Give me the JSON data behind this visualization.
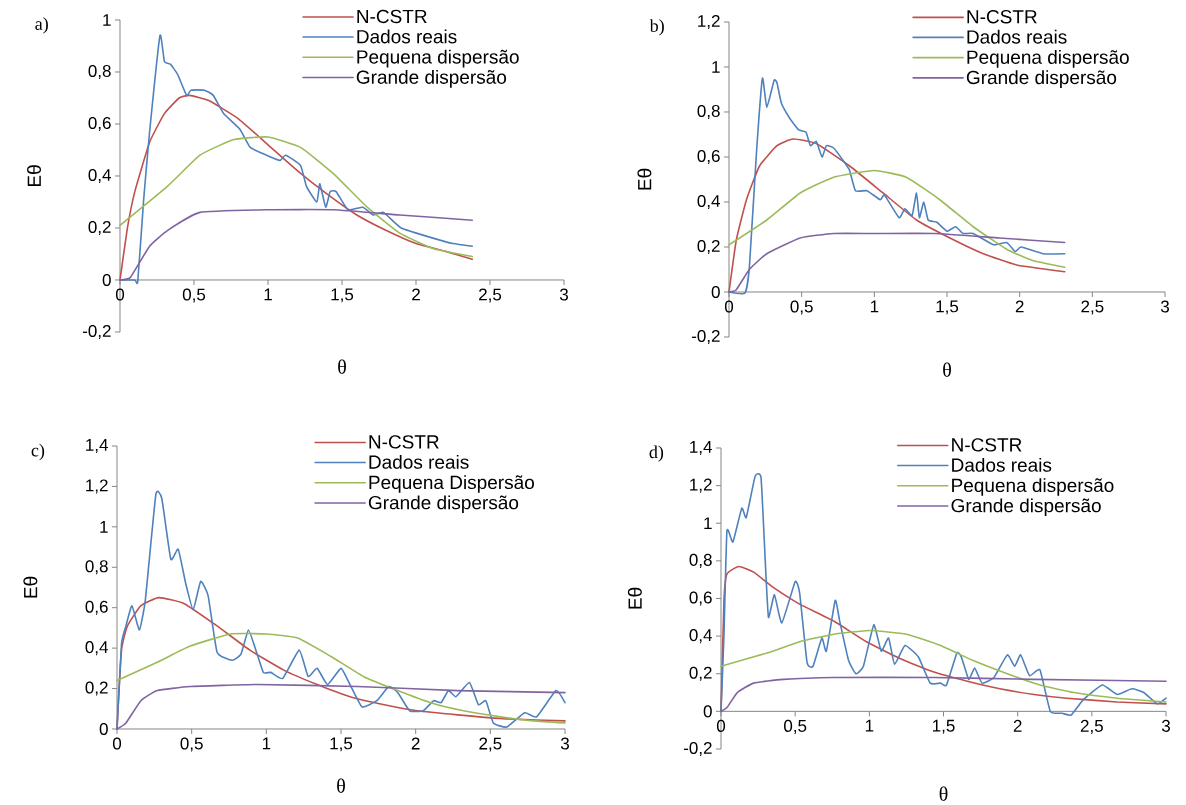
{
  "chart_data": [
    {
      "type": "line",
      "xlabel": "θ",
      "ylabel": "Eθ",
      "annotations": [
        "a)"
      ],
      "legend": "top right",
      "xlim": [
        0,
        3
      ],
      "ylim": [
        -0.2,
        1
      ],
      "xticks": [
        0,
        {
          "value": 0.5,
          "label": "0,5"
        },
        1,
        {
          "value": 1.5,
          "label": "1,5"
        },
        2,
        {
          "value": 2.5,
          "label": "2,5"
        },
        3
      ],
      "yticks": [
        {
          "value": -0.2,
          "label": "-0,2"
        },
        0,
        {
          "value": 0.2,
          "label": "0,2"
        },
        {
          "value": 0.4,
          "label": "0,4"
        },
        {
          "value": 0.6,
          "label": "0,6"
        },
        {
          "value": 0.8,
          "label": "0,8"
        },
        1
      ],
      "series": [
        {
          "name": "N-CSTR",
          "color": "#c0504d",
          "x": [
            0,
            0.05,
            0.1,
            0.2,
            0.3,
            0.4,
            0.47,
            0.6,
            0.8,
            1.0,
            1.2,
            1.4,
            1.6,
            1.8,
            2.0,
            2.2,
            2.38
          ],
          "values": [
            0,
            0.2,
            0.34,
            0.53,
            0.64,
            0.7,
            0.71,
            0.69,
            0.62,
            0.52,
            0.42,
            0.33,
            0.25,
            0.19,
            0.14,
            0.11,
            0.08
          ]
        },
        {
          "name": "Dados reais",
          "color": "#4f81bd",
          "x": [
            0,
            0.1,
            0.12,
            0.16,
            0.2,
            0.27,
            0.3,
            0.34,
            0.39,
            0.45,
            0.48,
            0.57,
            0.63,
            0.7,
            0.81,
            0.88,
            0.99,
            1.08,
            1.12,
            1.22,
            1.26,
            1.33,
            1.35,
            1.39,
            1.42,
            1.46,
            1.54,
            1.64,
            1.71,
            1.78,
            1.9,
            2.12,
            2.25,
            2.38
          ],
          "values": [
            0,
            0,
            -0.005,
            0.31,
            0.57,
            0.94,
            0.84,
            0.83,
            0.79,
            0.71,
            0.73,
            0.73,
            0.71,
            0.64,
            0.58,
            0.51,
            0.48,
            0.46,
            0.48,
            0.44,
            0.36,
            0.3,
            0.37,
            0.28,
            0.34,
            0.34,
            0.27,
            0.28,
            0.25,
            0.26,
            0.2,
            0.16,
            0.14,
            0.13
          ]
        },
        {
          "name": "Pequena dispersão",
          "color": "#9bbb59",
          "x": [
            0,
            0.32,
            0.54,
            0.77,
            1.0,
            1.22,
            1.44,
            1.67,
            1.89,
            2.12,
            2.38
          ],
          "values": [
            0.21,
            0.36,
            0.48,
            0.54,
            0.55,
            0.51,
            0.41,
            0.28,
            0.18,
            0.12,
            0.09
          ]
        },
        {
          "name": "Grande dispersão",
          "color": "#8064a2",
          "x": [
            0,
            0.07,
            0.2,
            0.32,
            0.54,
            0.99,
            1.44,
            1.89,
            2.38
          ],
          "values": [
            0,
            0.01,
            0.13,
            0.19,
            0.26,
            0.27,
            0.27,
            0.25,
            0.23
          ]
        }
      ]
    },
    {
      "type": "line",
      "xlabel": "θ",
      "ylabel": "Eθ",
      "annotations": [
        "b)"
      ],
      "legend": "top right",
      "xlim": [
        0,
        3
      ],
      "ylim": [
        -0.2,
        1.2
      ],
      "xticks": [
        0,
        {
          "value": 0.5,
          "label": "0,5"
        },
        1,
        {
          "value": 1.5,
          "label": "1,5"
        },
        2,
        {
          "value": 2.5,
          "label": "2,5"
        },
        3
      ],
      "yticks": [
        {
          "value": -0.2,
          "label": "-0,2"
        },
        0,
        {
          "value": 0.2,
          "label": "0,2"
        },
        {
          "value": 0.4,
          "label": "0,4"
        },
        {
          "value": 0.6,
          "label": "0,6"
        },
        {
          "value": 0.8,
          "label": "0,8"
        },
        1,
        {
          "value": 1.2,
          "label": "1,2"
        }
      ],
      "series": [
        {
          "name": "N-CSTR",
          "color": "#c0504d",
          "x": [
            0,
            0.05,
            0.12,
            0.21,
            0.33,
            0.44,
            0.6,
            0.83,
            1.06,
            1.29,
            1.52,
            1.75,
            1.98,
            2.31
          ],
          "values": [
            0,
            0.23,
            0.41,
            0.56,
            0.65,
            0.68,
            0.66,
            0.56,
            0.44,
            0.32,
            0.24,
            0.17,
            0.12,
            0.09
          ]
        },
        {
          "name": "Dados reais",
          "color": "#4f81bd",
          "x": [
            0,
            0.11,
            0.14,
            0.19,
            0.23,
            0.26,
            0.31,
            0.33,
            0.36,
            0.42,
            0.48,
            0.53,
            0.56,
            0.6,
            0.64,
            0.67,
            0.72,
            0.79,
            0.83,
            0.87,
            0.95,
            1.04,
            1.07,
            1.17,
            1.21,
            1.26,
            1.29,
            1.31,
            1.34,
            1.37,
            1.43,
            1.5,
            1.56,
            1.61,
            1.68,
            1.82,
            1.91,
            1.97,
            2.01,
            2.16,
            2.31
          ],
          "values": [
            0,
            -0.005,
            0.11,
            0.63,
            0.95,
            0.82,
            0.94,
            0.93,
            0.84,
            0.77,
            0.72,
            0.71,
            0.65,
            0.67,
            0.6,
            0.65,
            0.64,
            0.58,
            0.54,
            0.45,
            0.45,
            0.41,
            0.43,
            0.33,
            0.37,
            0.34,
            0.44,
            0.33,
            0.4,
            0.32,
            0.31,
            0.27,
            0.29,
            0.26,
            0.26,
            0.21,
            0.22,
            0.18,
            0.2,
            0.17,
            0.17
          ]
        },
        {
          "name": "Pequena dispersão",
          "color": "#9bbb59",
          "x": [
            0,
            0.26,
            0.49,
            0.72,
            1.0,
            1.22,
            1.45,
            1.68,
            1.91,
            2.09,
            2.31
          ],
          "values": [
            0.21,
            0.32,
            0.44,
            0.51,
            0.54,
            0.51,
            0.41,
            0.29,
            0.19,
            0.14,
            0.11
          ]
        },
        {
          "name": "Grande dispersão",
          "color": "#8064a2",
          "x": [
            0,
            0.05,
            0.14,
            0.26,
            0.49,
            0.72,
            1.0,
            1.41,
            1.86,
            2.31
          ],
          "values": [
            0,
            0.01,
            0.1,
            0.17,
            0.24,
            0.26,
            0.26,
            0.26,
            0.24,
            0.22
          ]
        }
      ]
    },
    {
      "type": "line",
      "xlabel": "θ",
      "ylabel": "Eθ",
      "annotations": [
        "c)"
      ],
      "legend": "top right",
      "xlim": [
        0,
        3
      ],
      "ylim": [
        0,
        1.4
      ],
      "xticks": [
        0,
        {
          "value": 0.5,
          "label": "0,5"
        },
        1,
        {
          "value": 1.5,
          "label": "1,5"
        },
        2,
        {
          "value": 2.5,
          "label": "2,5"
        },
        3
      ],
      "yticks": [
        0,
        {
          "value": 0.2,
          "label": "0,2"
        },
        {
          "value": 0.4,
          "label": "0,4"
        },
        {
          "value": 0.6,
          "label": "0,6"
        },
        {
          "value": 0.8,
          "label": "0,8"
        },
        1,
        {
          "value": 1.2,
          "label": "1,2"
        },
        {
          "value": 1.4,
          "label": "1,4"
        }
      ],
      "series": [
        {
          "name": "N-CSTR",
          "color": "#c0504d",
          "x": [
            0,
            0.03,
            0.07,
            0.16,
            0.28,
            0.45,
            0.67,
            0.89,
            1.12,
            1.34,
            1.56,
            1.79,
            2.01,
            2.28,
            2.61,
            3.0
          ],
          "values": [
            0,
            0.39,
            0.51,
            0.61,
            0.65,
            0.62,
            0.51,
            0.39,
            0.29,
            0.22,
            0.16,
            0.12,
            0.09,
            0.07,
            0.05,
            0.04
          ]
        },
        {
          "name": "Dados reais",
          "color": "#4f81bd",
          "x": [
            0,
            0.03,
            0.06,
            0.1,
            0.15,
            0.19,
            0.26,
            0.3,
            0.36,
            0.41,
            0.46,
            0.51,
            0.56,
            0.61,
            0.67,
            0.77,
            0.83,
            0.88,
            0.93,
            0.98,
            1.03,
            1.11,
            1.22,
            1.28,
            1.34,
            1.41,
            1.5,
            1.56,
            1.64,
            1.74,
            1.82,
            1.88,
            1.96,
            2.05,
            2.12,
            2.17,
            2.22,
            2.27,
            2.36,
            2.42,
            2.47,
            2.52,
            2.61,
            2.73,
            2.81,
            2.94,
            3.0
          ],
          "values": [
            0,
            0.42,
            0.51,
            0.61,
            0.49,
            0.64,
            1.16,
            1.14,
            0.84,
            0.89,
            0.72,
            0.59,
            0.73,
            0.66,
            0.38,
            0.34,
            0.37,
            0.49,
            0.39,
            0.28,
            0.28,
            0.25,
            0.39,
            0.26,
            0.3,
            0.22,
            0.3,
            0.22,
            0.11,
            0.14,
            0.21,
            0.18,
            0.09,
            0.09,
            0.14,
            0.13,
            0.19,
            0.16,
            0.23,
            0.12,
            0.14,
            0.03,
            0.01,
            0.08,
            0.06,
            0.19,
            0.13
          ]
        },
        {
          "name": "Pequena Dispersão",
          "color": "#9bbb59",
          "x": [
            0,
            0.27,
            0.49,
            0.76,
            1.0,
            1.21,
            1.43,
            1.65,
            1.88,
            2.1,
            2.32,
            2.57,
            2.79,
            3.0
          ],
          "values": [
            0.24,
            0.33,
            0.41,
            0.47,
            0.47,
            0.45,
            0.36,
            0.26,
            0.19,
            0.13,
            0.09,
            0.06,
            0.04,
            0.03
          ]
        },
        {
          "name": "Grande dispersão",
          "color": "#8064a2",
          "x": [
            0,
            0.06,
            0.16,
            0.27,
            0.49,
            0.94,
            1.61,
            2.28,
            3.0
          ],
          "values": [
            0,
            0.03,
            0.14,
            0.19,
            0.21,
            0.22,
            0.21,
            0.19,
            0.18
          ]
        }
      ]
    },
    {
      "type": "line",
      "xlabel": "θ",
      "ylabel": "Eθ",
      "annotations": [
        "d)"
      ],
      "legend": "top right",
      "xlim": [
        0,
        3
      ],
      "ylim": [
        -0.2,
        1.4
      ],
      "xticks": [
        0,
        {
          "value": 0.5,
          "label": "0,5"
        },
        1,
        {
          "value": 1.5,
          "label": "1,5"
        },
        2,
        {
          "value": 2.5,
          "label": "2,5"
        },
        3
      ],
      "yticks": [
        {
          "value": -0.2,
          "label": "-0,2"
        },
        0,
        {
          "value": 0.2,
          "label": "0,2"
        },
        {
          "value": 0.4,
          "label": "0,4"
        },
        {
          "value": 0.6,
          "label": "0,6"
        },
        {
          "value": 0.8,
          "label": "0,8"
        },
        1,
        {
          "value": 1.2,
          "label": "1,2"
        },
        {
          "value": 1.4,
          "label": "1,4"
        }
      ],
      "series": [
        {
          "name": "N-CSTR",
          "color": "#c0504d",
          "x": [
            0,
            0.02,
            0.04,
            0.12,
            0.22,
            0.35,
            0.53,
            0.76,
            0.98,
            1.21,
            1.43,
            1.66,
            1.88,
            2.11,
            2.33,
            2.67,
            3.0
          ],
          "values": [
            0,
            0.59,
            0.73,
            0.77,
            0.74,
            0.66,
            0.57,
            0.48,
            0.37,
            0.28,
            0.21,
            0.16,
            0.12,
            0.09,
            0.07,
            0.05,
            0.04
          ]
        },
        {
          "name": "Dados reais",
          "color": "#4f81bd",
          "x": [
            0,
            0.02,
            0.04,
            0.08,
            0.14,
            0.17,
            0.23,
            0.27,
            0.3,
            0.32,
            0.36,
            0.41,
            0.5,
            0.53,
            0.58,
            0.62,
            0.68,
            0.71,
            0.77,
            0.8,
            0.86,
            0.91,
            0.96,
            1.03,
            1.08,
            1.13,
            1.17,
            1.24,
            1.33,
            1.41,
            1.48,
            1.52,
            1.59,
            1.62,
            1.67,
            1.71,
            1.76,
            1.84,
            1.93,
            1.98,
            2.02,
            2.08,
            2.15,
            2.22,
            2.3,
            2.36,
            2.44,
            2.57,
            2.67,
            2.77,
            2.85,
            2.94,
            3.0
          ],
          "values": [
            0,
            0.41,
            0.96,
            0.9,
            1.08,
            1.03,
            1.25,
            1.24,
            0.77,
            0.5,
            0.62,
            0.47,
            0.69,
            0.63,
            0.26,
            0.24,
            0.39,
            0.32,
            0.59,
            0.48,
            0.27,
            0.2,
            0.24,
            0.46,
            0.32,
            0.39,
            0.25,
            0.35,
            0.29,
            0.15,
            0.15,
            0.14,
            0.31,
            0.29,
            0.17,
            0.23,
            0.15,
            0.18,
            0.3,
            0.24,
            0.3,
            0.19,
            0.22,
            0.0,
            -0.01,
            -0.02,
            0.06,
            0.14,
            0.09,
            0.12,
            0.1,
            0.04,
            0.07
          ]
        },
        {
          "name": "Pequena dispersão",
          "color": "#9bbb59",
          "x": [
            0,
            0.31,
            0.53,
            0.76,
            1.0,
            1.25,
            1.48,
            1.7,
            1.93,
            2.15,
            2.38,
            2.67,
            3.0
          ],
          "values": [
            0.24,
            0.31,
            0.37,
            0.41,
            0.43,
            0.41,
            0.35,
            0.27,
            0.2,
            0.14,
            0.1,
            0.07,
            0.05
          ]
        },
        {
          "name": "Grande dispersão",
          "color": "#8064a2",
          "x": [
            0,
            0.04,
            0.11,
            0.22,
            0.42,
            0.76,
            1.43,
            2.11,
            3.0
          ],
          "values": [
            0,
            0.02,
            0.1,
            0.15,
            0.17,
            0.18,
            0.18,
            0.17,
            0.16
          ]
        }
      ]
    }
  ]
}
